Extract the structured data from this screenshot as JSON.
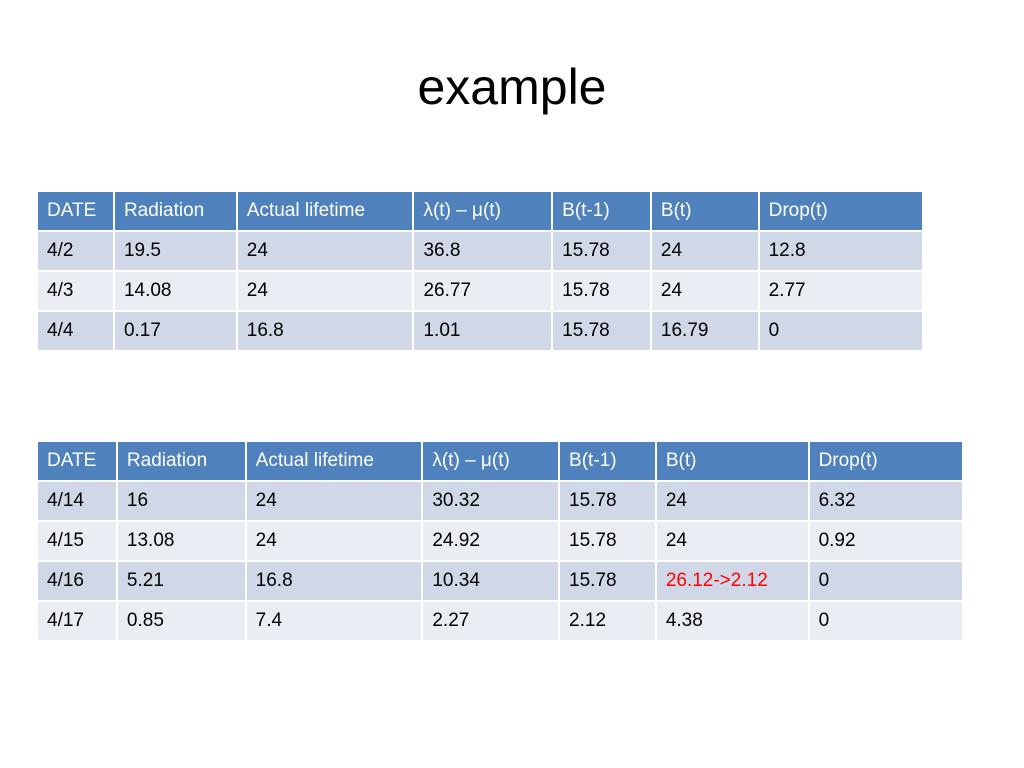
{
  "slide": {
    "title": "example"
  },
  "tables": [
    {
      "headers": [
        "DATE",
        "Radiation",
        "Actual lifetime",
        "λ(t) – μ(t)",
        "B(t-1)",
        "B(t)",
        "Drop(t)"
      ],
      "rows": [
        [
          "4/2",
          "19.5",
          "24",
          "36.8",
          "15.78",
          "24",
          "12.8"
        ],
        [
          "4/3",
          "14.08",
          "24",
          "26.77",
          "15.78",
          "24",
          "2.77"
        ],
        [
          "4/4",
          "0.17",
          "16.8",
          "1.01",
          "15.78",
          "16.79",
          "0"
        ]
      ]
    },
    {
      "headers": [
        "DATE",
        "Radiation",
        "Actual lifetime",
        "λ(t) – μ(t)",
        "B(t-1)",
        "B(t)",
        "Drop(t)"
      ],
      "rows": [
        [
          "4/14",
          "16",
          "24",
          "30.32",
          "15.78",
          "24",
          "6.32"
        ],
        [
          "4/15",
          "13.08",
          "24",
          "24.92",
          "15.78",
          "24",
          "0.92"
        ],
        [
          "4/16",
          "5.21",
          "16.8",
          "10.34",
          "15.78",
          "26.12->2.12",
          "0"
        ],
        [
          "4/17",
          "0.85",
          "7.4",
          "2.27",
          "2.12",
          "4.38",
          "0"
        ]
      ]
    }
  ],
  "colors": {
    "header_bg": "#4f81bd",
    "row_odd_bg": "#d0d8e8",
    "row_even_bg": "#e9edf4",
    "highlight_text": "#ff0000"
  }
}
